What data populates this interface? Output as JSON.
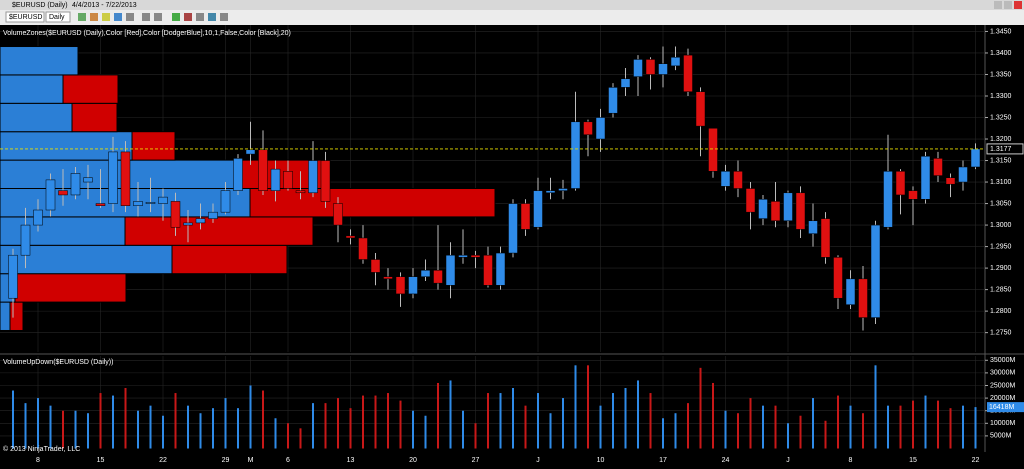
{
  "window": {
    "title": "$EURUSD (Daily)",
    "range": "4/4/2013 - 7/22/2013"
  },
  "toolbar": {
    "symbol": "$EURUSD",
    "interval": "Daily"
  },
  "footer": "© 2013 NinjaTrader, LLC",
  "chart_data": [
    {
      "type": "candlestick",
      "title": "VolumeZones($EURUSD (Daily),Color [Red],Color [DodgerBlue],10,1,False,Color [Black],20)",
      "categories": [
        null,
        null,
        "8",
        null,
        null,
        null,
        null,
        "15",
        null,
        null,
        null,
        null,
        "22",
        null,
        null,
        null,
        null,
        "29",
        null,
        "M",
        null,
        null,
        "6",
        null,
        null,
        null,
        null,
        "13",
        null,
        null,
        null,
        null,
        "20",
        null,
        null,
        null,
        null,
        "27",
        null,
        null,
        null,
        null,
        "J",
        null,
        null,
        null,
        null,
        "10",
        null,
        null,
        null,
        null,
        "17",
        null,
        null,
        null,
        null,
        "24",
        null,
        null,
        null,
        null,
        "J",
        null,
        null,
        null,
        null,
        "8",
        null,
        null,
        null,
        null,
        "15",
        null,
        null,
        null,
        null,
        "22"
      ],
      "open": [
        1.283,
        1.293,
        1.3,
        1.3035,
        1.308,
        1.307,
        1.31,
        1.305,
        1.305,
        1.317,
        1.3045,
        1.305,
        1.305,
        1.3055,
        1.3,
        1.3005,
        1.3015,
        1.303,
        1.308,
        1.3165,
        1.3175,
        1.308,
        1.3125,
        1.308,
        1.3075,
        1.315,
        1.305,
        1.2975,
        1.297,
        1.292,
        1.288,
        1.288,
        1.284,
        1.288,
        1.2895,
        1.286,
        1.2925,
        1.293,
        1.293,
        1.286,
        1.2935,
        1.305,
        1.2995,
        1.3075,
        1.308,
        1.3085,
        1.324,
        1.32,
        1.326,
        1.332,
        1.3345,
        1.3385,
        1.335,
        1.337,
        1.3395,
        1.331,
        1.3225,
        1.309,
        1.3125,
        1.3085,
        1.3015,
        1.3055,
        1.301,
        1.3075,
        1.298,
        1.3015,
        1.2925,
        1.2815,
        1.2875,
        1.2785,
        1.2995,
        1.3125,
        1.308,
        1.306,
        1.3155,
        1.311,
        1.31,
        1.3135
      ],
      "high": [
        1.2945,
        1.304,
        1.306,
        1.312,
        1.313,
        1.3135,
        1.314,
        1.313,
        1.3205,
        1.3195,
        1.31,
        1.311,
        1.3085,
        1.3075,
        1.3035,
        1.305,
        1.305,
        1.31,
        1.3165,
        1.324,
        1.322,
        1.315,
        1.315,
        1.3125,
        1.3195,
        1.317,
        1.3065,
        1.299,
        1.3,
        1.2935,
        1.29,
        1.289,
        1.29,
        1.292,
        1.3,
        1.296,
        1.299,
        1.294,
        1.295,
        1.295,
        1.306,
        1.306,
        1.311,
        1.311,
        1.3105,
        1.331,
        1.3245,
        1.327,
        1.333,
        1.3365,
        1.3395,
        1.339,
        1.3415,
        1.3415,
        1.341,
        1.332,
        1.3225,
        1.314,
        1.315,
        1.31,
        1.307,
        1.31,
        1.308,
        1.309,
        1.305,
        1.303,
        1.293,
        1.2895,
        1.2905,
        1.301,
        1.321,
        1.313,
        1.309,
        1.317,
        1.317,
        1.312,
        1.315,
        1.319
      ],
      "low": [
        1.2785,
        1.29,
        1.2985,
        1.302,
        1.3045,
        1.306,
        1.306,
        1.304,
        1.303,
        1.303,
        1.302,
        1.303,
        1.301,
        1.2975,
        1.296,
        1.299,
        1.3005,
        1.3025,
        1.307,
        1.314,
        1.307,
        1.3055,
        1.308,
        1.306,
        1.3065,
        1.304,
        1.296,
        1.2955,
        1.291,
        1.286,
        1.285,
        1.281,
        1.283,
        1.287,
        1.285,
        1.283,
        1.291,
        1.29,
        1.2855,
        1.285,
        1.2925,
        1.2975,
        1.299,
        1.306,
        1.306,
        1.308,
        1.316,
        1.317,
        1.325,
        1.33,
        1.33,
        1.3315,
        1.332,
        1.336,
        1.33,
        1.316,
        1.311,
        1.308,
        1.3065,
        1.299,
        1.3,
        1.2995,
        1.2995,
        1.297,
        1.295,
        1.291,
        1.2805,
        1.2805,
        1.2755,
        1.277,
        1.299,
        1.3025,
        1.3,
        1.305,
        1.31,
        1.3065,
        1.308,
        1.313
      ],
      "close": [
        1.293,
        1.3,
        1.3035,
        1.3105,
        1.307,
        1.312,
        1.311,
        1.3045,
        1.317,
        1.3045,
        1.3055,
        1.3053,
        1.3065,
        1.2995,
        1.3005,
        1.3015,
        1.303,
        1.308,
        1.3155,
        1.3175,
        1.308,
        1.313,
        1.3085,
        1.3075,
        1.315,
        1.3055,
        1.3,
        1.297,
        1.292,
        1.289,
        1.2875,
        1.284,
        1.288,
        1.2895,
        1.2865,
        1.293,
        1.293,
        1.2925,
        1.286,
        1.2935,
        1.305,
        1.299,
        1.308,
        1.308,
        1.3085,
        1.324,
        1.321,
        1.325,
        1.332,
        1.334,
        1.3385,
        1.335,
        1.3375,
        1.339,
        1.331,
        1.323,
        1.3125,
        1.3125,
        1.3085,
        1.303,
        1.306,
        1.301,
        1.3075,
        1.299,
        1.301,
        1.2925,
        1.283,
        1.2875,
        1.2785,
        1.3,
        1.3125,
        1.307,
        1.306,
        1.316,
        1.3115,
        1.3095,
        1.3135,
        1.3177
      ],
      "up_color": "#2f8be8",
      "down_color": "#e01010",
      "ylim": [
        1.2705,
        1.3465
      ],
      "yticks": [
        {
          "value": 1.275,
          "label": "1.2750"
        },
        {
          "value": 1.28,
          "label": "1.2800"
        },
        {
          "value": 1.285,
          "label": "1.2850"
        },
        {
          "value": 1.29,
          "label": "1.2900"
        },
        {
          "value": 1.295,
          "label": "1.2950"
        },
        {
          "value": 1.3,
          "label": "1.3000"
        },
        {
          "value": 1.305,
          "label": "1.3050"
        },
        {
          "value": 1.31,
          "label": "1.3100"
        },
        {
          "value": 1.315,
          "label": "1.3150"
        },
        {
          "value": 1.32,
          "label": "1.3200"
        },
        {
          "value": 1.325,
          "label": "1.3250"
        },
        {
          "value": 1.33,
          "label": "1.3300"
        },
        {
          "value": 1.335,
          "label": "1.3350"
        },
        {
          "value": 1.34,
          "label": "1.3400"
        },
        {
          "value": 1.345,
          "label": "1.3450"
        }
      ],
      "grid": true,
      "last_price": {
        "value": 1.3177,
        "label": "1.3177"
      },
      "volume_zones": {
        "bins": [
          1.2755,
          1.2821,
          1.2887,
          1.2953,
          1.3019,
          1.3085,
          1.3151,
          1.3217,
          1.3283,
          1.3349,
          1.3415
        ],
        "up_values": [
          10,
          15,
          172,
          125,
          250,
          240,
          132,
          72,
          63,
          78
        ],
        "down_values": [
          13,
          111,
          115,
          188,
          245,
          90,
          43,
          45,
          55,
          0
        ],
        "up_color": "#2b7fd6",
        "down_color": "#d00000"
      }
    },
    {
      "type": "bar",
      "title": "VolumeUpDown($EURUSD (Daily))",
      "values": [
        23000,
        18000,
        20000,
        17000,
        15000,
        15000,
        14000,
        22000,
        21000,
        24000,
        15000,
        17000,
        13000,
        22000,
        17000,
        14000,
        16000,
        20000,
        16000,
        25000,
        23000,
        12000,
        10000,
        8000,
        18000,
        18000,
        20000,
        16000,
        21000,
        21000,
        22000,
        19000,
        15000,
        13000,
        26000,
        27000,
        15000,
        10000,
        22000,
        22000,
        24000,
        17000,
        22000,
        14000,
        20000,
        33000,
        33000,
        17000,
        22000,
        24000,
        27000,
        22000,
        12000,
        14000,
        18000,
        32000,
        26000,
        15000,
        14000,
        20000,
        17000,
        17000,
        10000,
        13000,
        20000,
        11000,
        21000,
        17000,
        14000,
        33000,
        17000,
        17000,
        19000,
        21000,
        19000,
        16000,
        17000,
        16418
      ],
      "up_color": "#2f8be8",
      "down_color": "#c81818",
      "ylim": [
        0,
        36700
      ],
      "yticks": [
        {
          "value": 5000,
          "label": "5000M"
        },
        {
          "value": 10000,
          "label": "10000M"
        },
        {
          "value": 15000,
          "label": "15000M"
        },
        {
          "value": 20000,
          "label": "20000M"
        },
        {
          "value": 25000,
          "label": "25000M"
        },
        {
          "value": 30000,
          "label": "30000M"
        },
        {
          "value": 35000,
          "label": "35000M"
        }
      ],
      "grid": true,
      "last_volume": {
        "value": 16418,
        "label": "16418M"
      }
    }
  ]
}
